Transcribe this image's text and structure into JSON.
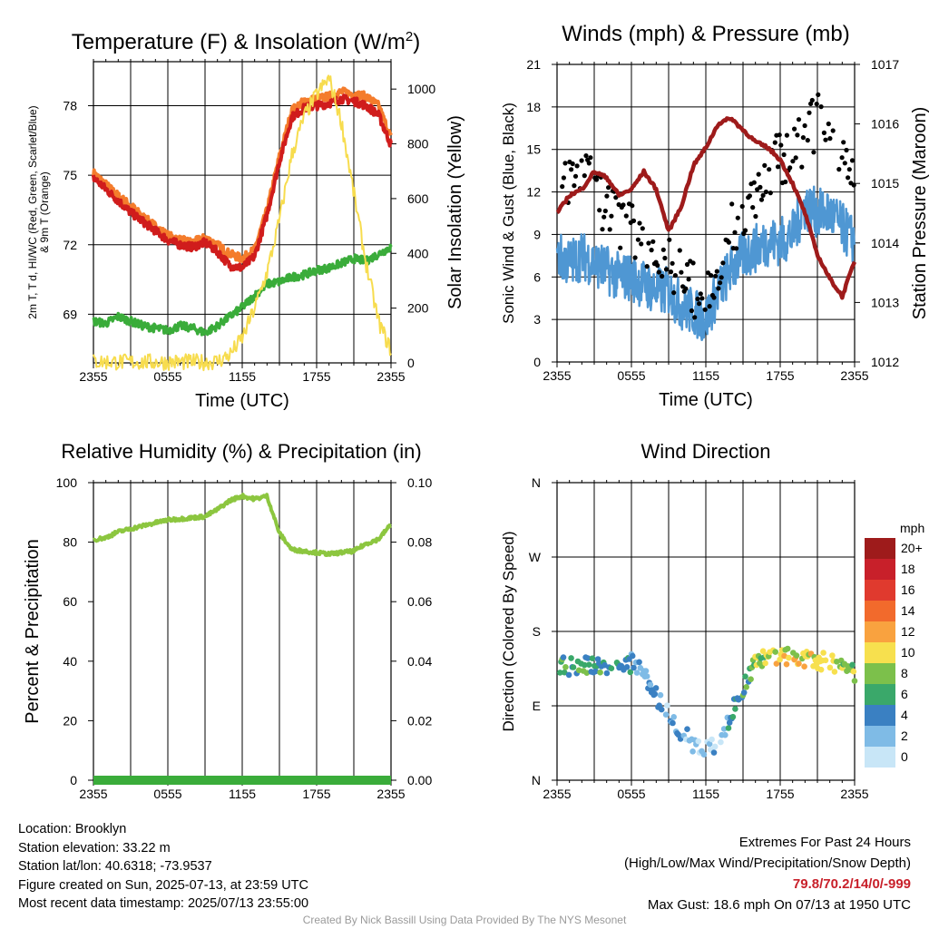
{
  "chart_data": [
    {
      "type": "line",
      "title": "Temperature (F) & Insolation (W/m",
      "title_sup": "2",
      "title_tail": ")",
      "xlabel": "Time (UTC)",
      "ylabel_left_line1": "2m T, T d, HI/WC (Red, Green, Scarlet/Blue)",
      "ylabel_left_line2": "& 9m T (Orange)",
      "ylabel_right": "Solar Insolation (Yellow)",
      "x_ticks": [
        "2355",
        "0555",
        "1155",
        "1755",
        "2355"
      ],
      "ylim": [
        66.9,
        79.9
      ],
      "y_ticks": [
        69,
        72,
        75,
        78
      ],
      "y2lim": [
        0,
        1100
      ],
      "y2_ticks": [
        0,
        200,
        400,
        600,
        800,
        1000
      ],
      "x_hours": [
        0,
        1,
        2,
        3,
        4,
        5,
        6,
        7,
        8,
        9,
        10,
        11,
        12,
        13,
        14,
        15,
        16,
        17,
        18,
        19,
        20,
        21,
        22,
        23,
        24
      ],
      "series": [
        {
          "name": "9m T",
          "color": "#f47c2c",
          "axis": "left",
          "width": 4,
          "values": [
            75.1,
            74.6,
            74.1,
            73.7,
            73.2,
            72.8,
            72.4,
            72.2,
            72.1,
            72.3,
            72.0,
            71.6,
            71.4,
            71.8,
            73.5,
            75.8,
            77.8,
            78.2,
            78.3,
            78.4,
            78.6,
            78.5,
            78.4,
            78.0,
            76.6
          ]
        },
        {
          "name": "2m T",
          "color": "#d01c1c",
          "axis": "left",
          "width": 4,
          "values": [
            74.9,
            74.4,
            73.9,
            73.4,
            73.0,
            72.6,
            72.2,
            72.0,
            71.9,
            72.1,
            71.7,
            71.1,
            71.0,
            71.5,
            73.3,
            75.6,
            77.5,
            77.9,
            78.0,
            78.1,
            78.3,
            78.2,
            78.0,
            77.6,
            76.3
          ]
        },
        {
          "name": "Td",
          "color": "#3aac3a",
          "axis": "left",
          "width": 3.5,
          "values": [
            68.7,
            68.6,
            68.9,
            68.7,
            68.5,
            68.4,
            68.3,
            68.5,
            68.4,
            68.2,
            68.5,
            68.9,
            69.3,
            69.8,
            70.3,
            70.4,
            70.6,
            70.7,
            70.9,
            71.0,
            71.2,
            71.4,
            71.3,
            71.6,
            71.9
          ]
        },
        {
          "name": "Solar Insolation",
          "color": "#f7dc4e",
          "axis": "right",
          "width": 2,
          "values": [
            5,
            4,
            3,
            3,
            3,
            3,
            3,
            3,
            3,
            3,
            5,
            30,
            90,
            200,
            330,
            520,
            760,
            900,
            980,
            1040,
            880,
            620,
            360,
            150,
            45
          ]
        }
      ]
    },
    {
      "type": "line",
      "title": "Winds (mph) & Pressure (mb)",
      "xlabel": "Time (UTC)",
      "ylabel_left": "Sonic Wind & Gust (Blue, Black)",
      "ylabel_right": "Station Pressure (Maroon)",
      "x_ticks": [
        "2355",
        "0555",
        "1155",
        "1755",
        "2355"
      ],
      "ylim": [
        0,
        21
      ],
      "y_ticks": [
        0,
        3,
        6,
        9,
        12,
        15,
        18,
        21
      ],
      "y2lim": [
        1012,
        1017
      ],
      "y2_ticks": [
        1012,
        1013,
        1014,
        1015,
        1016,
        1017
      ],
      "x_hours": [
        0,
        1,
        2,
        3,
        4,
        5,
        6,
        7,
        8,
        9,
        10,
        11,
        12,
        13,
        14,
        15,
        16,
        17,
        18,
        19,
        20,
        21,
        22,
        23,
        24
      ],
      "series": [
        {
          "name": "Sonic Wind",
          "color": "#4f97d3",
          "axis": "left",
          "width": 2.5,
          "values": [
            7.5,
            7.0,
            7.5,
            7.0,
            6.5,
            6.0,
            6.0,
            5.5,
            5.0,
            5.0,
            4.0,
            3.5,
            3.0,
            5.0,
            6.5,
            7.5,
            8.0,
            8.5,
            8.5,
            9.0,
            11.0,
            10.5,
            10.5,
            9.5,
            8.5
          ]
        },
        {
          "name": "Gust",
          "color": "#000000",
          "axis": "left",
          "type": "scatter",
          "values": [
            14,
            13,
            13.5,
            12,
            11,
            10,
            9.5,
            9,
            8,
            7,
            6,
            5,
            5,
            7,
            9,
            10.5,
            12,
            13.5,
            14.5,
            15,
            16,
            17,
            16,
            15,
            14
          ]
        },
        {
          "name": "Station Pressure",
          "color": "#9e1b1b",
          "axis": "right",
          "width": 4.5,
          "values": [
            1014.5,
            1014.8,
            1014.9,
            1015.2,
            1015.1,
            1014.8,
            1014.9,
            1015.2,
            1014.9,
            1014.2,
            1014.6,
            1015.3,
            1015.6,
            1016.0,
            1016.1,
            1015.9,
            1015.7,
            1015.6,
            1015.4,
            1015.0,
            1014.5,
            1013.8,
            1013.4,
            1013.1,
            1013.7
          ]
        }
      ]
    },
    {
      "type": "line",
      "title": "Relative Humidity (%) & Precipitation (in)",
      "ylabel": "Percent & Precipitation",
      "x_ticks": [
        "2355",
        "0555",
        "1155",
        "1755",
        "2355"
      ],
      "ylim": [
        0,
        100
      ],
      "y_ticks": [
        0,
        20,
        40,
        60,
        80,
        100
      ],
      "y2lim": [
        0,
        0.1
      ],
      "y2_ticks": [
        "0.00",
        "0.02",
        "0.04",
        "0.06",
        "0.08",
        "0.10"
      ],
      "x_hours": [
        0,
        1,
        2,
        3,
        4,
        5,
        6,
        7,
        8,
        9,
        10,
        11,
        12,
        13,
        14,
        15,
        16,
        17,
        18,
        19,
        20,
        21,
        22,
        23,
        24
      ],
      "series": [
        {
          "name": "Relative Humidity",
          "color": "#8cc63f",
          "axis": "left",
          "width": 4,
          "values": [
            80.8,
            81.5,
            83.5,
            84.5,
            85.5,
            86.5,
            87.5,
            87.8,
            88.2,
            88.6,
            91.0,
            94.0,
            95.5,
            94.5,
            95.5,
            83.0,
            77.5,
            77.0,
            76.5,
            76.0,
            76.5,
            77.0,
            79.5,
            81.0,
            86.0
          ]
        },
        {
          "name": "Precipitation",
          "color": "#3aac3a",
          "axis": "right",
          "width": 10,
          "values": [
            0,
            0,
            0,
            0,
            0,
            0,
            0,
            0,
            0,
            0,
            0,
            0,
            0,
            0,
            0,
            0,
            0,
            0,
            0,
            0,
            0,
            0,
            0,
            0,
            0
          ]
        }
      ]
    },
    {
      "type": "scatter",
      "title": "Wind Direction",
      "ylabel": "Direction (Colored By Speed)",
      "x_ticks": [
        "2355",
        "0555",
        "1155",
        "1755",
        "2355"
      ],
      "y_ticks": [
        "N",
        "E",
        "S",
        "W",
        "N"
      ],
      "ylim": [
        0,
        360
      ],
      "legend_title": "mph",
      "legend_labels": [
        "20+",
        "18",
        "16",
        "14",
        "12",
        "10",
        "8",
        "6",
        "4",
        "2",
        "0"
      ],
      "legend_colors": [
        "#9e1b1b",
        "#c8202a",
        "#e03a2e",
        "#f26a2c",
        "#f9a23f",
        "#f7e04e",
        "#7cc04b",
        "#3aa86a",
        "#3a80c2",
        "#7fbbe6",
        "#c8e6f7"
      ],
      "x_hours": [
        0,
        1,
        2,
        3,
        4,
        5,
        6,
        7,
        8,
        9,
        10,
        11,
        12,
        13,
        14,
        15,
        16,
        17,
        18,
        19,
        20,
        21,
        22,
        23,
        24
      ],
      "direction_deg": [
        140,
        138,
        140,
        136,
        140,
        138,
        142,
        128,
        100,
        80,
        60,
        45,
        40,
        45,
        80,
        110,
        145,
        150,
        150,
        148,
        148,
        145,
        142,
        140,
        130
      ],
      "speed_mph": [
        7,
        7,
        7,
        7,
        6,
        6,
        5,
        4,
        4,
        3,
        3,
        2,
        2,
        3,
        5,
        7,
        9,
        10,
        11,
        11,
        10,
        11,
        10,
        9,
        8
      ]
    }
  ],
  "info": {
    "location": "Location: Brooklyn",
    "elevation": "Station elevation: 33.22 m",
    "latlon": "Station lat/lon: 40.6318; -73.9537",
    "created": "Figure created on Sun, 2025-07-13, at 23:59 UTC",
    "recent": "Most recent data timestamp: 2025/07/13 23:55:00"
  },
  "extremes": {
    "title": "Extremes For Past 24 Hours",
    "subtitle": "(High/Low/Max Wind/Precipitation/Snow Depth)",
    "values": "79.8/70.2/14/0/-999",
    "max_gust": "Max Gust: 18.6 mph On 07/13 at 1950 UTC"
  },
  "credit": "Created By Nick Bassill Using Data Provided By The NYS Mesonet"
}
